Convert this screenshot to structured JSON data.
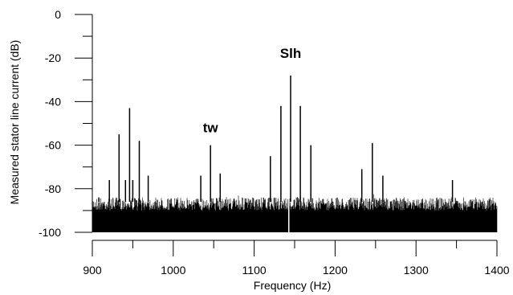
{
  "chart_data": {
    "type": "line",
    "title": "",
    "xlabel": "Frequency (Hz)",
    "ylabel": "Measured stator line current (dB)",
    "xlim": [
      900,
      1400
    ],
    "ylim": [
      -100,
      0
    ],
    "x_ticks": [
      900,
      1000,
      1100,
      1200,
      1300,
      1400
    ],
    "y_ticks": [
      0,
      -20,
      -40,
      -60,
      -80,
      -100
    ],
    "grid": false,
    "noise_floor_db": [
      -100,
      -84
    ],
    "series": [
      {
        "x": [
          908,
          921,
          933,
          941,
          946,
          950,
          958,
          969,
          1034,
          1046,
          1058,
          1120,
          1133,
          1145,
          1157,
          1170,
          1233,
          1246,
          1259,
          1345
        ],
        "values": [
          -84,
          -76,
          -55,
          -76,
          -43,
          -76,
          -58,
          -74,
          -74,
          -60,
          -73,
          -65,
          -42,
          -28,
          -42,
          -60,
          -71,
          -59,
          -74,
          -76
        ]
      }
    ],
    "annotations": [
      {
        "text": "tw",
        "x": 1046,
        "y": -54
      },
      {
        "text": "Slh",
        "x": 1145,
        "y": -20
      }
    ]
  }
}
